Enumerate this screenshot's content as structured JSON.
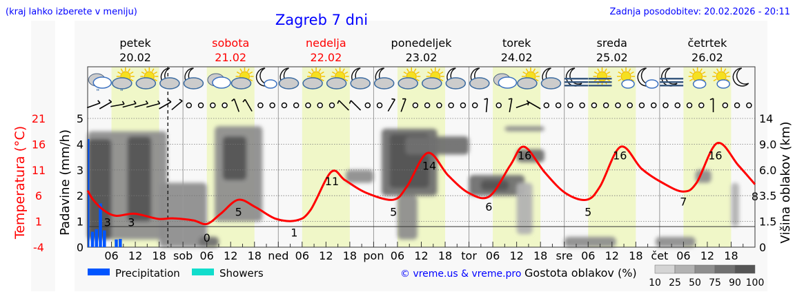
{
  "header": {
    "menu_hint": "(kraj lahko izberete v meniju)",
    "title": "Zagreb 7 dni",
    "last_update": "Zadnja posodobitev: 20.02.2026 - 20:11"
  },
  "days": [
    {
      "name": "petek",
      "date": "20.02",
      "weekend": false,
      "abbr": ""
    },
    {
      "name": "sobota",
      "date": "21.02",
      "weekend": true,
      "abbr": "sob"
    },
    {
      "name": "nedelja",
      "date": "22.02",
      "weekend": true,
      "abbr": "ned"
    },
    {
      "name": "ponedeljek",
      "date": "23.02",
      "weekend": false,
      "abbr": "pon"
    },
    {
      "name": "torek",
      "date": "24.02",
      "weekend": false,
      "abbr": "tor"
    },
    {
      "name": "sreda",
      "date": "25.02",
      "weekend": false,
      "abbr": "sre"
    },
    {
      "name": "četrtek",
      "date": "26.02",
      "weekend": false,
      "abbr": "čet"
    }
  ],
  "hour_ticks": [
    "06",
    "12",
    "18"
  ],
  "colors": {
    "temperature": "#ff0000",
    "precipitation": "#0055ff",
    "showers": "#11ddcc",
    "daylight": "#f0f7c8",
    "weekend": "#ff0000",
    "link": "#0000ff"
  },
  "legend": {
    "precipitation": "Precipitation",
    "showers": "Showers",
    "copyright": "© vreme.us & vreme.pro",
    "cloud_density": "Gostota oblakov (%)",
    "density_levels": [
      "10",
      "25",
      "50",
      "75",
      "90",
      "100"
    ],
    "density_colors": [
      "#d4d4d4",
      "#b2b2b2",
      "#8e8e8e",
      "#707070",
      "#555555"
    ]
  },
  "weather_icons": [
    "cloudy-drizzle",
    "sun-cloud-drizzle",
    "sun-cloud",
    "moon-cloud",
    "moon-cloud",
    "cloudy",
    "sun-cloud",
    "moon-small-cloud",
    "moon-cloud",
    "sun-cloud",
    "sun-cloud",
    "moon-cloud",
    "moon-cloud",
    "sun-cloud",
    "sun-cloud",
    "moon-cloud",
    "moon-cloud",
    "cloudy",
    "sun-cloud",
    "moon-cloud",
    "moon-fog",
    "sun-fog",
    "sun-small-cloud",
    "moon-small-cloud",
    "moon-fog",
    "sun-small-cloud",
    "sun-small-cloud",
    "moon-clear"
  ],
  "wind": [
    "160",
    "150",
    "170",
    "165",
    "165",
    "165",
    "150",
    "140",
    "calm",
    "calm",
    "calm",
    "calm",
    "70",
    "60",
    "calm",
    "calm",
    "calm",
    "calm",
    "calm",
    "calm",
    "calm",
    "45",
    "45",
    "calm",
    "calm",
    "120",
    "110",
    "calm",
    "calm",
    "calm",
    "calm",
    "calm",
    "calm",
    "95",
    "calm",
    "100",
    "160",
    "30",
    "calm",
    "calm",
    "calm",
    "calm",
    "calm",
    "calm",
    "calm",
    "calm",
    "calm",
    "calm",
    "calm",
    "calm",
    "calm",
    "calm",
    "90",
    "calm",
    "calm",
    "calm"
  ],
  "chart_data": {
    "type": "line",
    "x_unit": "hour from 20.02 00:00",
    "xlim": [
      0,
      168
    ],
    "axes": {
      "left_precip": {
        "label": "Padavine (mm/h)",
        "range": [
          0,
          5
        ],
        "ticks": [
          "0",
          "1",
          "2",
          "3",
          "4",
          "5"
        ]
      },
      "left_temp": {
        "label": "Temperatura (°C)",
        "range": [
          -4,
          21
        ],
        "ticks": [
          "-4",
          "1",
          "6",
          "11",
          "16",
          "21"
        ]
      },
      "right_cloud_height": {
        "label": "Višina oblakov (km)",
        "ticks": [
          "0",
          "1.5",
          "3.5",
          "6.0",
          "9.0",
          "14"
        ]
      }
    },
    "grid": true,
    "current_time_hour": 20.2,
    "temperature": {
      "points": [
        [
          0,
          7
        ],
        [
          1.4,
          5.2
        ],
        [
          4,
          3.2
        ],
        [
          7.1,
          2.1
        ],
        [
          11.8,
          2.5
        ],
        [
          17.7,
          1.5
        ],
        [
          21.4,
          1.6
        ],
        [
          26.6,
          1.2
        ],
        [
          30,
          0.5
        ],
        [
          33.5,
          2.5
        ],
        [
          37.9,
          5.2
        ],
        [
          42.2,
          3.8
        ],
        [
          47.4,
          1.5
        ],
        [
          52.6,
          1.2
        ],
        [
          56.1,
          3.2
        ],
        [
          61.3,
          10.6
        ],
        [
          64.8,
          9
        ],
        [
          70,
          6.6
        ],
        [
          76.9,
          5.2
        ],
        [
          80.4,
          7.8
        ],
        [
          85.6,
          14.3
        ],
        [
          90.8,
          9.9
        ],
        [
          96,
          6.5
        ],
        [
          101.2,
          5.9
        ],
        [
          106.4,
          11.9
        ],
        [
          109.9,
          15.5
        ],
        [
          115.1,
          10.5
        ],
        [
          120.3,
          6.5
        ],
        [
          125.6,
          5.2
        ],
        [
          129,
          7.8
        ],
        [
          134.2,
          15.5
        ],
        [
          139.5,
          11.2
        ],
        [
          144.7,
          8.5
        ],
        [
          149.9,
          6.8
        ],
        [
          153.3,
          8.5
        ],
        [
          158.5,
          16.2
        ],
        [
          163.8,
          11.9
        ],
        [
          168,
          8.2
        ]
      ],
      "labels": [
        [
          5,
          "3"
        ],
        [
          11,
          "3"
        ],
        [
          30,
          "0"
        ],
        [
          38,
          "5"
        ],
        [
          52,
          "1"
        ],
        [
          61.5,
          "11"
        ],
        [
          77,
          "5"
        ],
        [
          86,
          "14"
        ],
        [
          101,
          "6"
        ],
        [
          110,
          "16"
        ],
        [
          126,
          "5"
        ],
        [
          134,
          "16"
        ],
        [
          150,
          "7"
        ],
        [
          158,
          "16"
        ],
        [
          168,
          "8"
        ]
      ]
    },
    "precipitation": [
      [
        0,
        4.2
      ],
      [
        1,
        0.6
      ],
      [
        2,
        0.7
      ],
      [
        3,
        1.7
      ],
      [
        4,
        0.65
      ],
      [
        7,
        0.3
      ],
      [
        8,
        0.32
      ]
    ],
    "showers": [],
    "clouds": [
      [
        0,
        20,
        0.3,
        4.5,
        50
      ],
      [
        0,
        6,
        0.3,
        4.2,
        90
      ],
      [
        10,
        16,
        1,
        4.3,
        90
      ],
      [
        18,
        30,
        0,
        2.5,
        50
      ],
      [
        28,
        33,
        0,
        0.4,
        75
      ],
      [
        32,
        44,
        1,
        4.7,
        50
      ],
      [
        34,
        40,
        2.6,
        4.3,
        90
      ],
      [
        65,
        72,
        2.5,
        3.0,
        50
      ],
      [
        74,
        88,
        2,
        4.6,
        75
      ],
      [
        76,
        86,
        2.3,
        4.4,
        90
      ],
      [
        80,
        96,
        3.6,
        4.3,
        75
      ],
      [
        78,
        83,
        0.3,
        2,
        50
      ],
      [
        96,
        110,
        2,
        2.8,
        75
      ],
      [
        99,
        106,
        2.2,
        2.6,
        90
      ],
      [
        105,
        115,
        4.5,
        4.7,
        60
      ],
      [
        108,
        115,
        3.3,
        3.8,
        80
      ],
      [
        108,
        112,
        0.5,
        2.5,
        30
      ],
      [
        120,
        133,
        0,
        0.4,
        70
      ],
      [
        143,
        153,
        0,
        0.4,
        70
      ],
      [
        153,
        157,
        2.5,
        3,
        50
      ],
      [
        162,
        164,
        0.8,
        2.5,
        30
      ]
    ]
  }
}
